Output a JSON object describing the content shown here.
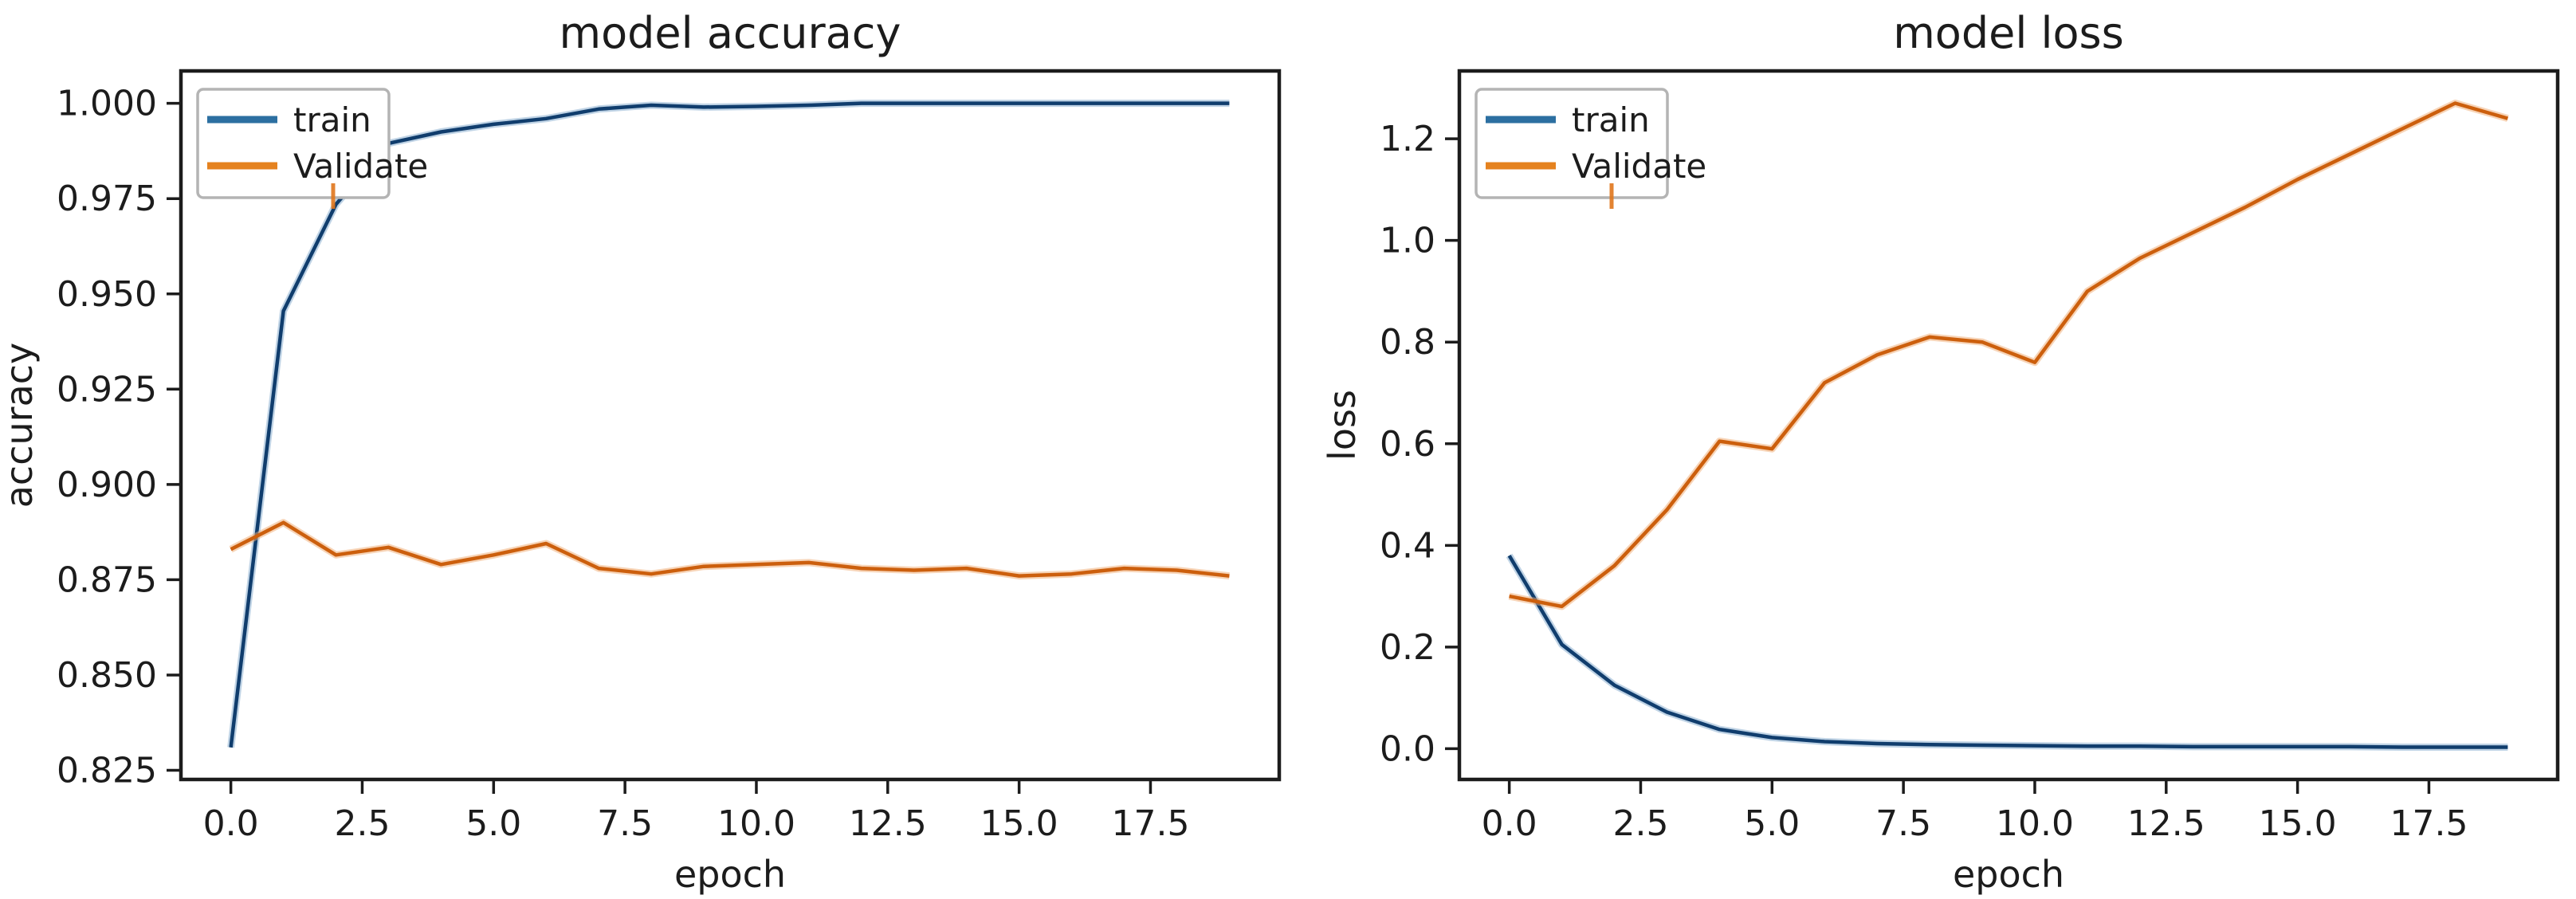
{
  "figure": {
    "background": "#ffffff",
    "text_color": "#1c1c1c",
    "spine_color": "#1c1c1c"
  },
  "chart_data": [
    {
      "type": "line",
      "title": "model accuracy",
      "xlabel": "epoch",
      "ylabel": "accuracy",
      "x": [
        0,
        1,
        2,
        3,
        4,
        5,
        6,
        7,
        8,
        9,
        10,
        11,
        12,
        13,
        14,
        15,
        16,
        17,
        18,
        19
      ],
      "xlim": [
        -0.95,
        19.95
      ],
      "ylim": [
        0.8226,
        1.0085
      ],
      "xticks": [
        0,
        2.5,
        5,
        7.5,
        10,
        12.5,
        15,
        17.5
      ],
      "xtick_labels": [
        "0.0",
        "2.5",
        "5.0",
        "7.5",
        "10.0",
        "12.5",
        "15.0",
        "17.5"
      ],
      "yticks": [
        0.825,
        0.85,
        0.875,
        0.9,
        0.925,
        0.95,
        0.975,
        1.0
      ],
      "ytick_labels": [
        "0.825",
        "0.850",
        "0.875",
        "0.900",
        "0.925",
        "0.950",
        "0.975",
        "1.000"
      ],
      "grid": false,
      "legend_position": "upper left",
      "series": [
        {
          "name": "train",
          "swatch_color": "#2c6fa1",
          "line_color": "#103d6d",
          "halo_color": "#7fa8cc",
          "values": [
            0.831,
            0.9455,
            0.9735,
            0.9895,
            0.9925,
            0.9945,
            0.996,
            0.9985,
            0.9995,
            0.999,
            0.9992,
            0.9995,
            1.0,
            1.0,
            1.0,
            1.0,
            1.0,
            1.0,
            1.0,
            1.0
          ]
        },
        {
          "name": "Validate",
          "swatch_color": "#e5821f",
          "line_color": "#cc5f0d",
          "halo_color": "#f0aa70",
          "values": [
            0.883,
            0.89,
            0.8815,
            0.8835,
            0.879,
            0.8815,
            0.8845,
            0.878,
            0.8765,
            0.8785,
            0.879,
            0.8795,
            0.878,
            0.8775,
            0.878,
            0.876,
            0.8765,
            0.878,
            0.8775,
            0.876
          ]
        }
      ]
    },
    {
      "type": "line",
      "title": "model loss",
      "xlabel": "epoch",
      "ylabel": "loss",
      "x": [
        0,
        1,
        2,
        3,
        4,
        5,
        6,
        7,
        8,
        9,
        10,
        11,
        12,
        13,
        14,
        15,
        16,
        17,
        18,
        19
      ],
      "xlim": [
        -0.95,
        19.95
      ],
      "ylim": [
        -0.0605,
        1.3335
      ],
      "xticks": [
        0,
        2.5,
        5,
        7.5,
        10,
        12.5,
        15,
        17.5
      ],
      "xtick_labels": [
        "0.0",
        "2.5",
        "5.0",
        "7.5",
        "10.0",
        "12.5",
        "15.0",
        "17.5"
      ],
      "yticks": [
        0.0,
        0.2,
        0.4,
        0.6,
        0.8,
        1.0,
        1.2
      ],
      "ytick_labels": [
        "0.0",
        "0.2",
        "0.4",
        "0.6",
        "0.8",
        "1.0",
        "1.2"
      ],
      "grid": false,
      "legend_position": "upper left",
      "series": [
        {
          "name": "train",
          "swatch_color": "#2c6fa1",
          "line_color": "#103d6d",
          "halo_color": "#7fa8cc",
          "values": [
            0.38,
            0.205,
            0.125,
            0.072,
            0.038,
            0.022,
            0.014,
            0.01,
            0.008,
            0.007,
            0.006,
            0.005,
            0.005,
            0.004,
            0.004,
            0.004,
            0.004,
            0.003,
            0.003,
            0.003
          ]
        },
        {
          "name": "Validate",
          "swatch_color": "#e5821f",
          "line_color": "#cc5f0d",
          "halo_color": "#f0aa70",
          "values": [
            0.3,
            0.28,
            0.36,
            0.47,
            0.605,
            0.59,
            0.72,
            0.775,
            0.81,
            0.8,
            0.76,
            0.9,
            0.965,
            1.015,
            1.065,
            1.12,
            1.17,
            1.22,
            1.27,
            1.24
          ]
        }
      ]
    }
  ],
  "legend_artifact": {
    "color": "#e0761c",
    "description": "small orange compression-artifact dash under each legend box"
  }
}
